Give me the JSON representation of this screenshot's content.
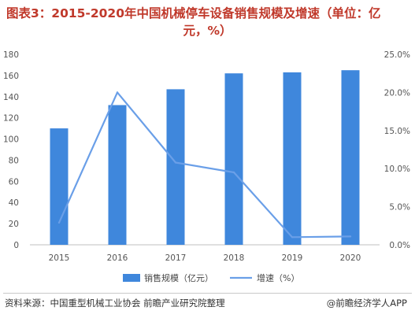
{
  "title_line1": "图表3：2015-2020年中国机械停车设备销售规模及增速（单位：亿",
  "title_line2": "元，%）",
  "source": "资料来源：中国重型机械工业协会 前瞻产业研究院整理",
  "brand": "@前瞻经济学人APP",
  "colors": {
    "bar": "#3f87dc",
    "line": "#6a9fe8",
    "title": "#c0392b"
  },
  "chart_data": {
    "type": "bar+line",
    "categories": [
      "2015",
      "2016",
      "2017",
      "2018",
      "2019",
      "2020"
    ],
    "series": [
      {
        "name": "销售规模（亿元）",
        "type": "bar",
        "axis": "left",
        "values": [
          110,
          132,
          147,
          162,
          163,
          165
        ]
      },
      {
        "name": "增速（%）",
        "type": "line",
        "axis": "right",
        "values": [
          2.9,
          20.0,
          10.8,
          9.5,
          1.0,
          1.1
        ]
      }
    ],
    "y_left": {
      "min": 0,
      "max": 180,
      "step": 20,
      "ticks": [
        "0",
        "20",
        "40",
        "60",
        "80",
        "100",
        "120",
        "140",
        "160",
        "180"
      ]
    },
    "y_right": {
      "min": 0,
      "max": 25,
      "step": 5,
      "ticks": [
        "0.0%",
        "5.0%",
        "10.0%",
        "15.0%",
        "20.0%",
        "25.0%"
      ]
    },
    "grid": false,
    "legend_position": "bottom"
  }
}
